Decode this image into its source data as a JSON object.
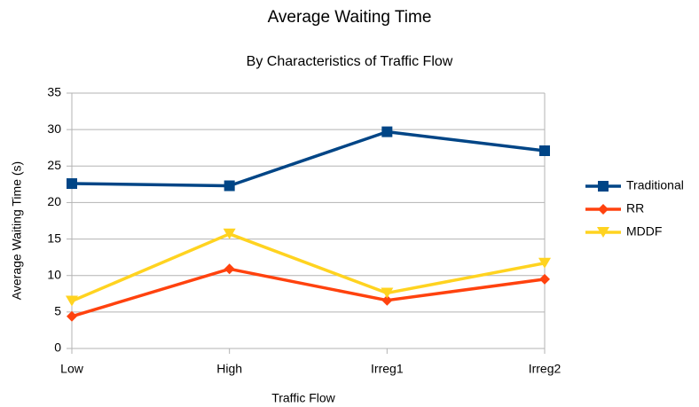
{
  "chart_data": {
    "type": "line",
    "title": "Average Waiting Time",
    "subtitle": "By Characteristics of Traffic Flow",
    "x_label": "Traffic Flow",
    "y_label": "Average Waiting Time (s)",
    "categories": [
      "Low",
      "High",
      "Irreg1",
      "Irreg2"
    ],
    "series": [
      {
        "name": "Traditional",
        "color": "#004586",
        "marker": "square",
        "values": [
          22.6,
          22.3,
          29.7,
          27.1
        ]
      },
      {
        "name": "RR",
        "color": "#ff420e",
        "marker": "diamond",
        "values": [
          4.4,
          10.9,
          6.6,
          9.5
        ]
      },
      {
        "name": "MDDF",
        "color": "#ffd320",
        "marker": "triangle-down",
        "values": [
          6.5,
          15.7,
          7.6,
          11.7
        ]
      }
    ],
    "ylim": [
      0,
      35
    ],
    "yticks": [
      0,
      5,
      10,
      15,
      20,
      25,
      30,
      35
    ],
    "grid": true,
    "legend": "right"
  }
}
